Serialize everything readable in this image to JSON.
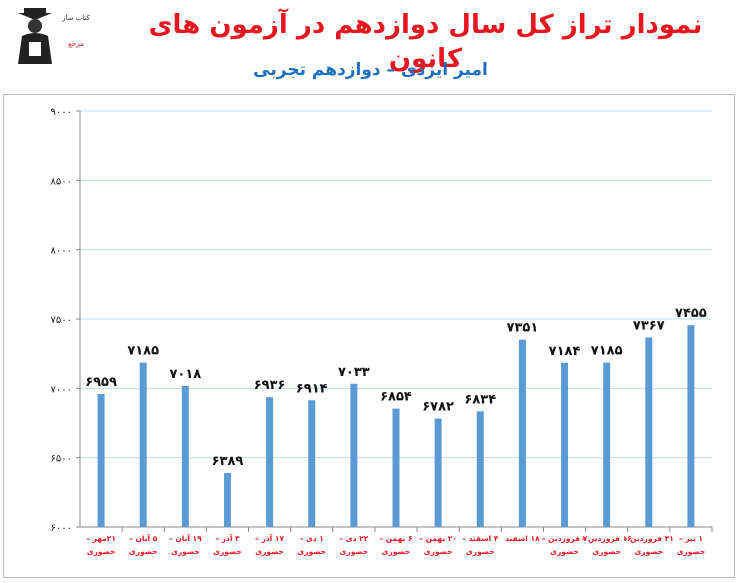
{
  "header": {
    "title": "نمودار تراز کل سال دوازدهم در آزمون های کانون",
    "subtitle": "امیر ایزدی – دوازدهم تجربی",
    "logo_text": [
      "کتاب ساز",
      "مرجع"
    ]
  },
  "colors": {
    "title": "#e8161f",
    "subtitle": "#1f6fbf",
    "bar": "#5b9bd5",
    "grid": "#c6d9ef",
    "tick_label": "#e8161f",
    "axis_label": "#222222"
  },
  "chart_data": {
    "type": "bar",
    "title": "",
    "xlabel": "",
    "ylabel": "",
    "ylim": [
      6000,
      9000
    ],
    "yticks": [
      6000,
      6500,
      7000,
      7500,
      8000,
      8500,
      9000
    ],
    "ytick_labels": [
      "۶۰۰۰",
      "۶۵۰۰",
      "۷۰۰۰",
      "۷۵۰۰",
      "۸۰۰۰",
      "۸۵۰۰",
      "۹۰۰۰"
    ],
    "grid": true,
    "legend": "none",
    "categories": [
      [
        "۲۱مهر –",
        "حضوری"
      ],
      [
        "۵ آبان –",
        "حضوری"
      ],
      [
        "۱۹ آبان –",
        "حضوری"
      ],
      [
        "۳ آذر –",
        "حضوری"
      ],
      [
        "۱۷ آذر –",
        "حضوری"
      ],
      [
        "۱ دی –",
        "حضوری"
      ],
      [
        "۲۲ دی –",
        "حضوری"
      ],
      [
        "۶ بهمن –",
        "حضوری"
      ],
      [
        "۲۰ بهمن –",
        "حضوری"
      ],
      [
        "۴ اسفند –",
        "حضوری"
      ],
      [
        "۱۸ اسفند"
      ],
      [
        "۷ فروردین –",
        "حضوری"
      ],
      [
        "۱۶ فروردین –",
        "حضوری"
      ],
      [
        "۳۱ فروردین –",
        "حضوری"
      ],
      [
        "۱ تیر –",
        "حضوری"
      ]
    ],
    "values": [
      6959,
      7185,
      7018,
      6389,
      6936,
      6914,
      7033,
      6854,
      6782,
      6834,
      7351,
      7184,
      7185,
      7367,
      7455
    ],
    "value_labels": [
      "۶۹۵۹",
      "۷۱۸۵",
      "۷۰۱۸",
      "۶۳۸۹",
      "۶۹۳۶",
      "۶۹۱۴",
      "۷۰۳۳",
      "۶۸۵۴",
      "۶۷۸۲",
      "۶۸۳۴",
      "۷۳۵۱",
      "۷۱۸۴",
      "۷۱۸۵",
      "۷۳۶۷",
      "۷۴۵۵"
    ]
  }
}
